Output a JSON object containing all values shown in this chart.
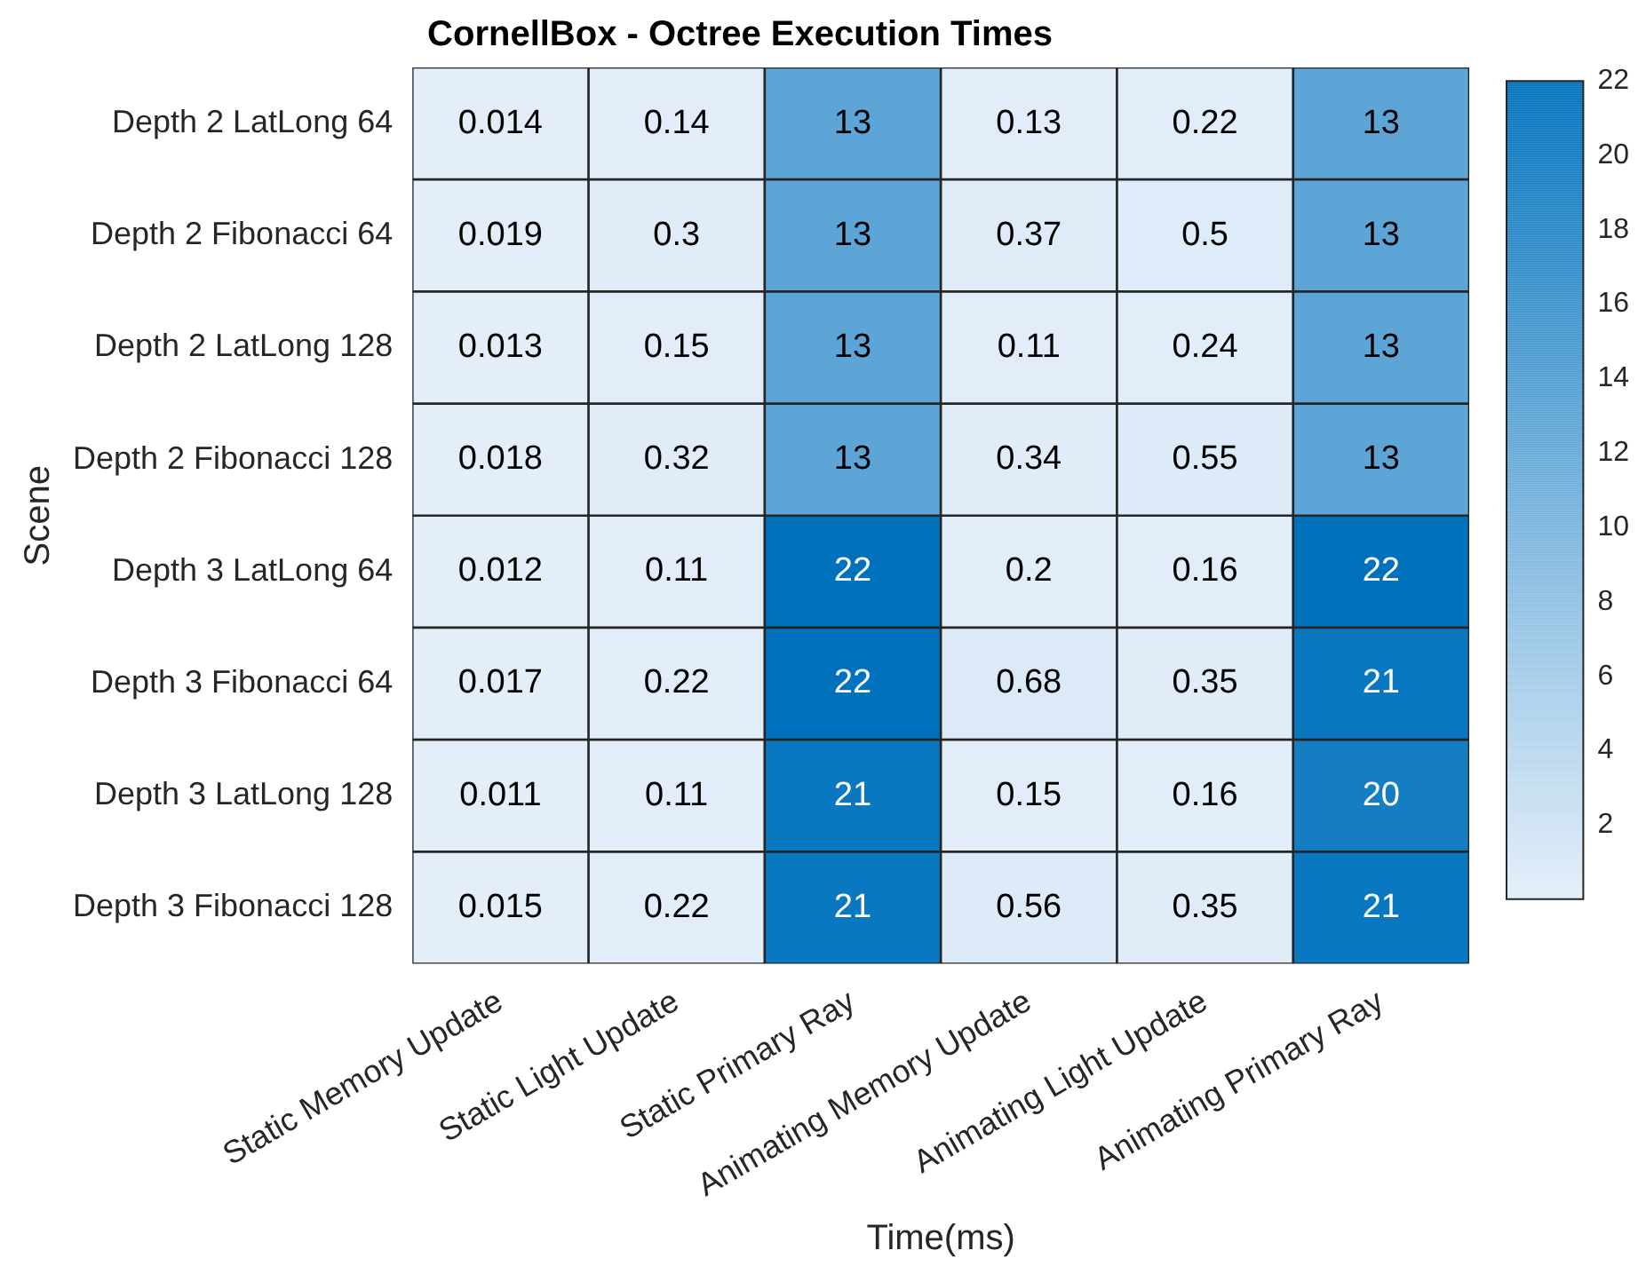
{
  "chart_data": {
    "type": "heatmap",
    "title": "CornellBox - Octree Execution Times",
    "xlabel": "Time(ms)",
    "ylabel": "Scene",
    "categories": [
      "Static Memory Update",
      "Static Light Update",
      "Static Primary Ray",
      "Animating Memory Update",
      "Animating Light Update",
      "Animating Primary Ray"
    ],
    "y_categories": [
      "Depth 2 LatLong 64",
      "Depth 2 Fibonacci 64",
      "Depth 2 LatLong 128",
      "Depth 2 Fibonacci 128",
      "Depth 3 LatLong 64",
      "Depth 3 Fibonacci 64",
      "Depth 3 LatLong 128",
      "Depth 3 Fibonacci 128"
    ],
    "cells": [
      [
        0.014,
        0.14,
        13,
        0.13,
        0.22,
        13
      ],
      [
        0.019,
        0.3,
        13,
        0.37,
        0.5,
        13
      ],
      [
        0.013,
        0.15,
        13,
        0.11,
        0.24,
        13
      ],
      [
        0.018,
        0.32,
        13,
        0.34,
        0.55,
        13
      ],
      [
        0.012,
        0.11,
        22,
        0.2,
        0.16,
        22
      ],
      [
        0.017,
        0.22,
        22,
        0.68,
        0.35,
        21
      ],
      [
        0.011,
        0.11,
        21,
        0.15,
        0.16,
        20
      ],
      [
        0.015,
        0.22,
        21,
        0.56,
        0.35,
        21
      ]
    ],
    "clim": [
      0.011,
      22
    ],
    "cticks": [
      2,
      4,
      6,
      8,
      10,
      12,
      14,
      16,
      18,
      20,
      22
    ],
    "colors": [
      "#e3eef9",
      "#0072bd"
    ],
    "data_labels": true
  }
}
